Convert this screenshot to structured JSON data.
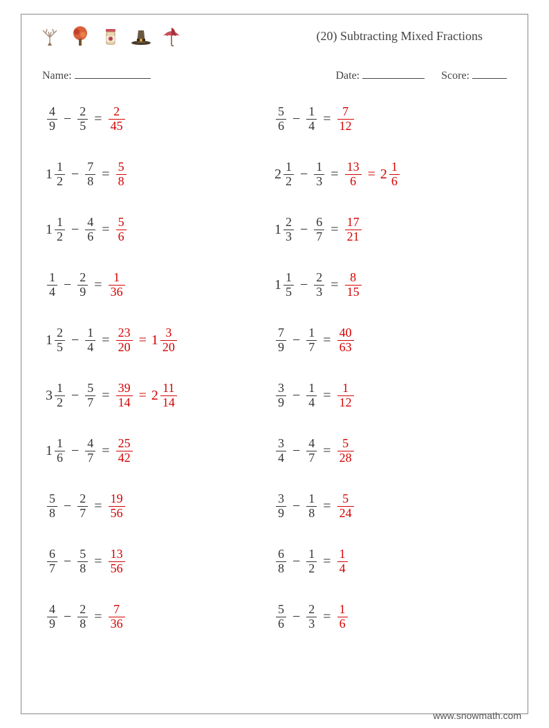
{
  "title": "(20) Subtracting Mixed Fractions",
  "labels": {
    "name": "Name:",
    "date": "Date:",
    "score": "Score:"
  },
  "footer": "www.snowmath.com",
  "colors": {
    "answer": "#d40000",
    "text": "#333333"
  },
  "icons": [
    {
      "name": "bare-tree",
      "color": "#a89080"
    },
    {
      "name": "autumn-tree",
      "color": "#d9603b"
    },
    {
      "name": "jam-jar",
      "color": "#b84050"
    },
    {
      "name": "pilgrim-hat",
      "color": "#6b5840"
    },
    {
      "name": "umbrella",
      "color": "#c94f5b"
    }
  ],
  "problems": [
    {
      "col": 0,
      "a": {
        "n": 4,
        "d": 9
      },
      "b": {
        "n": 2,
        "d": 5
      },
      "ans": [
        {
          "n": 2,
          "d": 45
        }
      ]
    },
    {
      "col": 1,
      "a": {
        "n": 5,
        "d": 6
      },
      "b": {
        "n": 1,
        "d": 4
      },
      "ans": [
        {
          "n": 7,
          "d": 12
        }
      ]
    },
    {
      "col": 0,
      "a": {
        "w": 1,
        "n": 1,
        "d": 2
      },
      "b": {
        "n": 7,
        "d": 8
      },
      "ans": [
        {
          "n": 5,
          "d": 8
        }
      ]
    },
    {
      "col": 1,
      "a": {
        "w": 2,
        "n": 1,
        "d": 2
      },
      "b": {
        "n": 1,
        "d": 3
      },
      "ans": [
        {
          "n": 13,
          "d": 6
        },
        {
          "w": 2,
          "n": 1,
          "d": 6
        }
      ]
    },
    {
      "col": 0,
      "a": {
        "w": 1,
        "n": 1,
        "d": 2
      },
      "b": {
        "n": 4,
        "d": 6
      },
      "ans": [
        {
          "n": 5,
          "d": 6
        }
      ]
    },
    {
      "col": 1,
      "a": {
        "w": 1,
        "n": 2,
        "d": 3
      },
      "b": {
        "n": 6,
        "d": 7
      },
      "ans": [
        {
          "n": 17,
          "d": 21
        }
      ]
    },
    {
      "col": 0,
      "a": {
        "n": 1,
        "d": 4
      },
      "b": {
        "n": 2,
        "d": 9
      },
      "ans": [
        {
          "n": 1,
          "d": 36
        }
      ]
    },
    {
      "col": 1,
      "a": {
        "w": 1,
        "n": 1,
        "d": 5
      },
      "b": {
        "n": 2,
        "d": 3
      },
      "ans": [
        {
          "n": 8,
          "d": 15
        }
      ]
    },
    {
      "col": 0,
      "a": {
        "w": 1,
        "n": 2,
        "d": 5
      },
      "b": {
        "n": 1,
        "d": 4
      },
      "ans": [
        {
          "n": 23,
          "d": 20
        },
        {
          "w": 1,
          "n": 3,
          "d": 20
        }
      ]
    },
    {
      "col": 1,
      "a": {
        "n": 7,
        "d": 9
      },
      "b": {
        "n": 1,
        "d": 7
      },
      "ans": [
        {
          "n": 40,
          "d": 63
        }
      ]
    },
    {
      "col": 0,
      "a": {
        "w": 3,
        "n": 1,
        "d": 2
      },
      "b": {
        "n": 5,
        "d": 7
      },
      "ans": [
        {
          "n": 39,
          "d": 14
        },
        {
          "w": 2,
          "n": 11,
          "d": 14
        }
      ]
    },
    {
      "col": 1,
      "a": {
        "n": 3,
        "d": 9
      },
      "b": {
        "n": 1,
        "d": 4
      },
      "ans": [
        {
          "n": 1,
          "d": 12
        }
      ]
    },
    {
      "col": 0,
      "a": {
        "w": 1,
        "n": 1,
        "d": 6
      },
      "b": {
        "n": 4,
        "d": 7
      },
      "ans": [
        {
          "n": 25,
          "d": 42
        }
      ]
    },
    {
      "col": 1,
      "a": {
        "n": 3,
        "d": 4
      },
      "b": {
        "n": 4,
        "d": 7
      },
      "ans": [
        {
          "n": 5,
          "d": 28
        }
      ]
    },
    {
      "col": 0,
      "a": {
        "n": 5,
        "d": 8
      },
      "b": {
        "n": 2,
        "d": 7
      },
      "ans": [
        {
          "n": 19,
          "d": 56
        }
      ]
    },
    {
      "col": 1,
      "a": {
        "n": 3,
        "d": 9
      },
      "b": {
        "n": 1,
        "d": 8
      },
      "ans": [
        {
          "n": 5,
          "d": 24
        }
      ]
    },
    {
      "col": 0,
      "a": {
        "n": 6,
        "d": 7
      },
      "b": {
        "n": 5,
        "d": 8
      },
      "ans": [
        {
          "n": 13,
          "d": 56
        }
      ]
    },
    {
      "col": 1,
      "a": {
        "n": 6,
        "d": 8
      },
      "b": {
        "n": 1,
        "d": 2
      },
      "ans": [
        {
          "n": 1,
          "d": 4
        }
      ]
    },
    {
      "col": 0,
      "a": {
        "n": 4,
        "d": 9
      },
      "b": {
        "n": 2,
        "d": 8
      },
      "ans": [
        {
          "n": 7,
          "d": 36
        }
      ]
    },
    {
      "col": 1,
      "a": {
        "n": 5,
        "d": 6
      },
      "b": {
        "n": 2,
        "d": 3
      },
      "ans": [
        {
          "n": 1,
          "d": 6
        }
      ]
    }
  ]
}
